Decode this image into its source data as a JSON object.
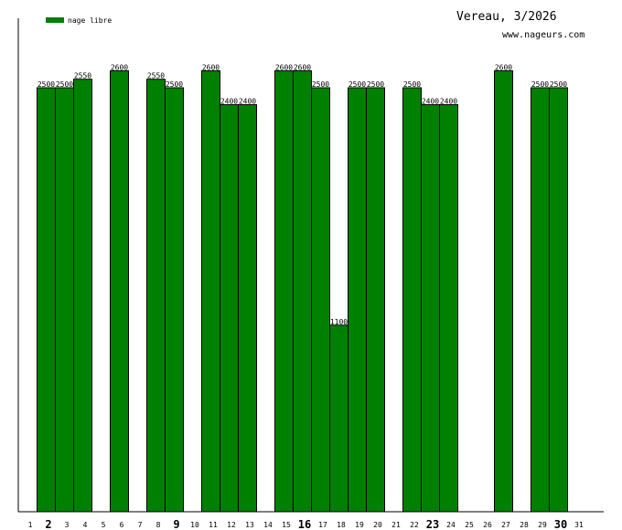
{
  "header": {
    "title": "Vereau, 3/2026",
    "site": "www.nageurs.com"
  },
  "legend": {
    "label": "nage libre",
    "color": "#008000"
  },
  "chart_data": {
    "type": "bar",
    "categories": [
      "1",
      "2",
      "3",
      "4",
      "5",
      "6",
      "7",
      "8",
      "9",
      "10",
      "11",
      "12",
      "13",
      "14",
      "15",
      "16",
      "17",
      "18",
      "19",
      "20",
      "21",
      "22",
      "23",
      "24",
      "25",
      "26",
      "27",
      "28",
      "29",
      "30",
      "31"
    ],
    "bold_categories": [
      "2",
      "9",
      "16",
      "23",
      "30"
    ],
    "series": [
      {
        "name": "nage libre",
        "color": "#008000",
        "values": [
          null,
          2500,
          2500,
          2550,
          null,
          2600,
          null,
          2550,
          2500,
          null,
          2600,
          2400,
          2400,
          null,
          2600,
          2600,
          2500,
          1100,
          2500,
          2500,
          null,
          2500,
          2400,
          2400,
          null,
          null,
          2600,
          null,
          2500,
          2500,
          null
        ]
      }
    ],
    "ylim": [
      0,
      2650
    ],
    "legend_position": "top-left"
  }
}
